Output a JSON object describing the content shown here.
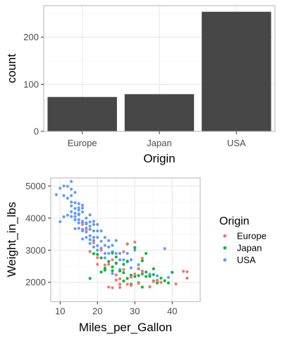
{
  "colors": {
    "bar_fill": "#474747",
    "panel_border": "#b3b3b3",
    "grid_major": "#e6e6e6",
    "grid_minor": "#f2f2f2",
    "tick_text": "#4d4d4d",
    "axis_title": "#000000",
    "Europe": "#F8766D",
    "Japan": "#00BA38",
    "USA": "#619CFF"
  },
  "chart_data": [
    {
      "type": "bar",
      "xlabel": "Origin",
      "ylabel": "count",
      "categories": [
        "Europe",
        "Japan",
        "USA"
      ],
      "values": [
        73,
        79,
        254
      ],
      "ylim": [
        0,
        267
      ],
      "yticks": [
        0,
        100,
        200
      ],
      "grid": true
    },
    {
      "type": "scatter",
      "xlabel": "Miles_per_Gallon",
      "ylabel": "Weight_in_lbs",
      "xlim": [
        7.5,
        47.5
      ],
      "ylim": [
        1400,
        5250
      ],
      "xticks": [
        10,
        20,
        30,
        40
      ],
      "yticks": [
        2000,
        3000,
        4000,
        5000
      ],
      "grid": true,
      "legend": {
        "title": "Origin",
        "position": "right",
        "entries": [
          "Europe",
          "Japan",
          "USA"
        ]
      },
      "series": [
        {
          "name": "USA",
          "points": [
            [
              9,
              4730
            ],
            [
              10,
              4930
            ],
            [
              11,
              5000
            ],
            [
              11,
              4700
            ],
            [
              12,
              4990
            ],
            [
              12,
              4620
            ],
            [
              13,
              5140
            ],
            [
              13,
              4700
            ],
            [
              13,
              4500
            ],
            [
              13,
              4380
            ],
            [
              13,
              4200
            ],
            [
              13,
              4050
            ],
            [
              14,
              4800
            ],
            [
              14,
              4480
            ],
            [
              14,
              4300
            ],
            [
              14,
              4150
            ],
            [
              14,
              4050
            ],
            [
              14,
              3950
            ],
            [
              14,
              3670
            ],
            [
              15,
              4450
            ],
            [
              15,
              4320
            ],
            [
              15,
              4250
            ],
            [
              15,
              4130
            ],
            [
              15,
              4100
            ],
            [
              15,
              3950
            ],
            [
              15,
              3850
            ],
            [
              15,
              3680
            ],
            [
              16,
              4400
            ],
            [
              16,
              4310
            ],
            [
              16,
              4190
            ],
            [
              16,
              3900
            ],
            [
              16,
              3850
            ],
            [
              16,
              3600
            ],
            [
              17,
              4000
            ],
            [
              17,
              3850
            ],
            [
              17,
              3820
            ],
            [
              17,
              3690
            ],
            [
              17,
              3570
            ],
            [
              17,
              3400
            ],
            [
              18,
              4100
            ],
            [
              18,
              3880
            ],
            [
              18,
              3750
            ],
            [
              18,
              3650
            ],
            [
              18,
              3450
            ],
            [
              18,
              3330
            ],
            [
              18,
              3210
            ],
            [
              19,
              3900
            ],
            [
              19,
              3800
            ],
            [
              19,
              3600
            ],
            [
              19,
              3400
            ],
            [
              19,
              3300
            ],
            [
              19,
              3100
            ],
            [
              20,
              3800
            ],
            [
              20,
              3600
            ],
            [
              20,
              3400
            ],
            [
              20,
              3140
            ],
            [
              20,
              3000
            ],
            [
              21,
              3600
            ],
            [
              21,
              3280
            ],
            [
              21,
              3060
            ],
            [
              22,
              3400
            ],
            [
              22,
              3150
            ],
            [
              22,
              2900
            ],
            [
              22,
              2760
            ],
            [
              23,
              3300
            ],
            [
              23,
              3100
            ],
            [
              23,
              2900
            ],
            [
              24,
              3150
            ],
            [
              24,
              2950
            ],
            [
              25,
              3300
            ],
            [
              25,
              2900
            ],
            [
              25,
              2600
            ],
            [
              26,
              2900
            ],
            [
              26,
              2700
            ],
            [
              27,
              2950
            ],
            [
              27,
              2700
            ],
            [
              28,
              2900
            ],
            [
              28,
              2640
            ],
            [
              29,
              2700
            ],
            [
              29,
              2450
            ],
            [
              31,
              2550
            ],
            [
              32,
              2350
            ],
            [
              34,
              2250
            ],
            [
              36,
              2200
            ],
            [
              38,
              3050
            ],
            [
              39,
              2150
            ],
            [
              16,
              3650
            ],
            [
              16,
              3350
            ],
            [
              10,
              3890
            ],
            [
              11,
              4040
            ],
            [
              12,
              4090
            ],
            [
              24,
              2270
            ],
            [
              26,
              2400
            ],
            [
              13,
              4900
            ],
            [
              30,
              3000
            ]
          ]
        },
        {
          "name": "Japan",
          "points": [
            [
              18,
              2120
            ],
            [
              21,
              2320
            ],
            [
              23,
              2650
            ],
            [
              24,
              2480
            ],
            [
              25,
              2590
            ],
            [
              27,
              2560
            ],
            [
              28,
              2660
            ],
            [
              29,
              2220
            ],
            [
              31,
              2420
            ],
            [
              32,
              2260
            ],
            [
              32,
              1850
            ],
            [
              33,
              2180
            ],
            [
              33,
              2900
            ],
            [
              34,
              2190
            ],
            [
              35,
              2240
            ],
            [
              35,
              2040
            ],
            [
              36,
              1980
            ],
            [
              37,
              2130
            ],
            [
              38,
              2050
            ],
            [
              39,
              1980
            ],
            [
              40,
              2310
            ],
            [
              27,
              2300
            ],
            [
              24,
              2910
            ],
            [
              22,
              2380
            ],
            [
              26,
              2350
            ],
            [
              30,
              2180
            ],
            [
              31,
              1990
            ],
            [
              32,
              2670
            ],
            [
              34,
              1860
            ],
            [
              36,
              2060
            ],
            [
              44,
              2130
            ],
            [
              33,
              2320
            ],
            [
              29,
              1940
            ],
            [
              28,
              2120
            ],
            [
              37,
              2000
            ],
            [
              31,
              2210
            ],
            [
              25,
              2790
            ],
            [
              20,
              2870
            ],
            [
              21,
              2760
            ],
            [
              35,
              2420
            ],
            [
              30,
              3080
            ],
            [
              22,
              2440
            ],
            [
              27,
              2040
            ],
            [
              19,
              2890
            ],
            [
              24,
              2360
            ],
            [
              28,
              3190
            ]
          ]
        },
        {
          "name": "Europe",
          "points": [
            [
              16,
              3800
            ],
            [
              17,
              3640
            ],
            [
              18,
              2960
            ],
            [
              19,
              3230
            ],
            [
              20,
              2770
            ],
            [
              21,
              3000
            ],
            [
              22,
              2540
            ],
            [
              23,
              2560
            ],
            [
              24,
              1830
            ],
            [
              25,
              2070
            ],
            [
              26,
              1840
            ],
            [
              26,
              2110
            ],
            [
              26,
              1940
            ],
            [
              27,
              2400
            ],
            [
              28,
              3200
            ],
            [
              29,
              1900
            ],
            [
              30,
              3250
            ],
            [
              30,
              2260
            ],
            [
              31,
              1970
            ],
            [
              32,
              2310
            ],
            [
              34,
              1860
            ],
            [
              35,
              2020
            ],
            [
              36,
              2050
            ],
            [
              37,
              2000
            ],
            [
              41,
              1950
            ],
            [
              43,
              2340
            ],
            [
              44,
              2130
            ],
            [
              44,
              2330
            ],
            [
              29,
              2160
            ],
            [
              31,
              2430
            ],
            [
              25,
              2230
            ],
            [
              23,
              1850
            ],
            [
              24,
              2700
            ],
            [
              28,
              1940
            ],
            [
              36,
              2040
            ],
            [
              27,
              2950
            ],
            [
              20,
              2560
            ],
            [
              32,
              2750
            ]
          ]
        }
      ]
    }
  ]
}
